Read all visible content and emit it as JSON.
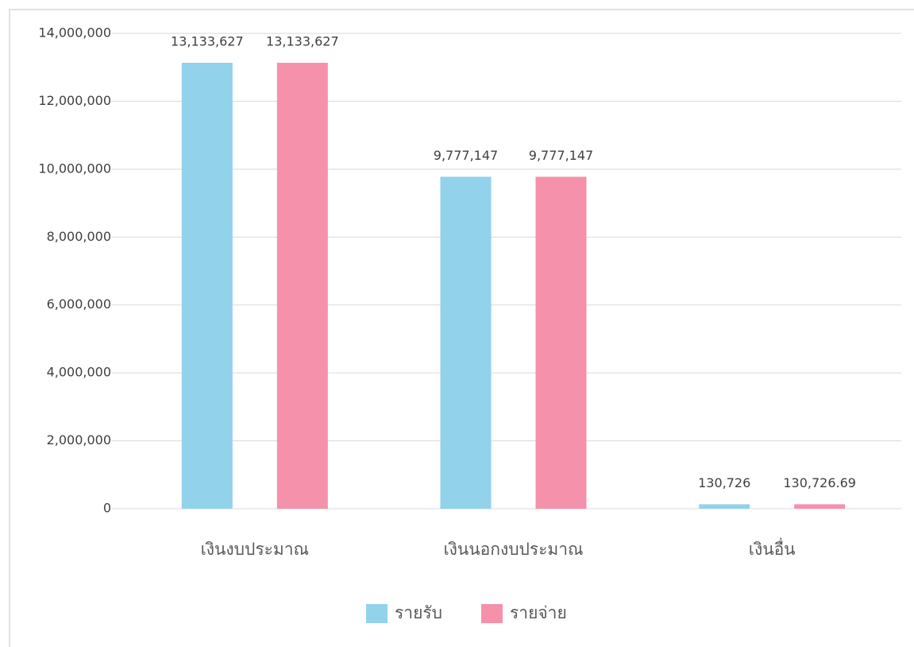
{
  "chart_data": {
    "type": "bar",
    "categories": [
      "เงินงบประมาณ",
      "เงินนอกงบประมาณ",
      "เงินอื่น"
    ],
    "series": [
      {
        "name": "รายรับ",
        "color": "#92d2ea",
        "values": [
          13133627,
          9777147,
          130726
        ],
        "value_labels": [
          "13,133,627",
          "9,777,147",
          "130,726"
        ]
      },
      {
        "name": "รายจ่าย",
        "color": "#f591ab",
        "values": [
          13133627,
          9777147,
          130726.69
        ],
        "value_labels": [
          "13,133,627",
          "9,777,147",
          "130,726.69"
        ]
      }
    ],
    "ylim": [
      0,
      14000000
    ],
    "yticks": [
      0,
      {
        "value": 2000000,
        "label": "2,000,000"
      },
      {
        "value": 4000000,
        "label": "4,000,000"
      },
      {
        "value": 6000000,
        "label": "6,000,000"
      },
      {
        "value": 8000000,
        "label": "8,000,000"
      },
      {
        "value": 10000000,
        "label": "10,000,000"
      },
      {
        "value": 12000000,
        "label": "12,000,000"
      },
      {
        "value": 14000000,
        "label": "14,000,000"
      }
    ],
    "grid": true,
    "legend": "bottom"
  }
}
